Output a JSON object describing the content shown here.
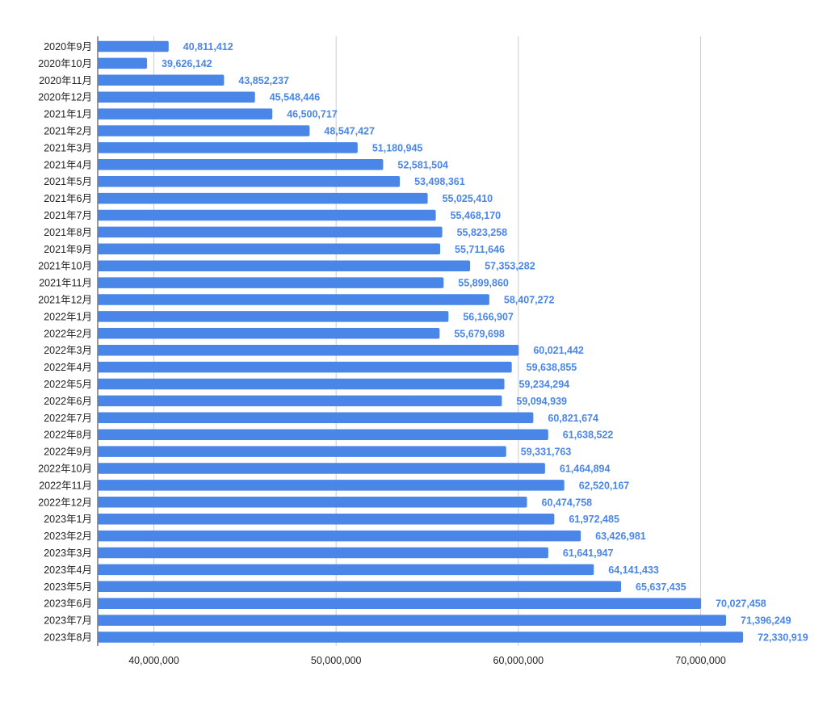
{
  "chart_data": {
    "type": "bar",
    "orientation": "horizontal",
    "categories": [
      "2020年9月",
      "2020年10月",
      "2020年11月",
      "2020年12月",
      "2021年1月",
      "2021年2月",
      "2021年3月",
      "2021年4月",
      "2021年5月",
      "2021年6月",
      "2021年7月",
      "2021年8月",
      "2021年9月",
      "2021年10月",
      "2021年11月",
      "2021年12月",
      "2022年1月",
      "2022年2月",
      "2022年3月",
      "2022年4月",
      "2022年5月",
      "2022年6月",
      "2022年7月",
      "2022年8月",
      "2022年9月",
      "2022年10月",
      "2022年11月",
      "2022年12月",
      "2023年1月",
      "2023年2月",
      "2023年3月",
      "2023年4月",
      "2023年5月",
      "2023年6月",
      "2023年7月",
      "2023年8月"
    ],
    "values": [
      40811412,
      39626142,
      43852237,
      45548446,
      46500717,
      48547427,
      51180945,
      52581504,
      53498361,
      55025410,
      55468170,
      55823258,
      55711646,
      57353282,
      55899860,
      58407272,
      56166907,
      55679698,
      60021442,
      59638855,
      59234294,
      59094939,
      60821674,
      61638522,
      59331763,
      61464894,
      62520167,
      60474758,
      61972485,
      63426981,
      61641947,
      64141433,
      65637435,
      70027458,
      71396249,
      72330919
    ],
    "data_labels": [
      "40,811,412",
      "39,626,142",
      "43,852,237",
      "45,548,446",
      "46,500,717",
      "48,547,427",
      "51,180,945",
      "52,581,504",
      "53,498,361",
      "55,025,410",
      "55,468,170",
      "55,823,258",
      "55,711,646",
      "57,353,282",
      "55,899,860",
      "58,407,272",
      "56,166,907",
      "55,679,698",
      "60,021,442",
      "59,638,855",
      "59,234,294",
      "59,094,939",
      "60,821,674",
      "61,638,522",
      "59,331,763",
      "61,464,894",
      "62,520,167",
      "60,474,758",
      "61,972,485",
      "63,426,981",
      "61,641,947",
      "64,141,433",
      "65,637,435",
      "70,027,458",
      "71,396,249",
      "72,330,919"
    ],
    "x_ticks": [
      {
        "value": 40000000,
        "label": "40,000,000"
      },
      {
        "value": 50000000,
        "label": "50,000,000"
      },
      {
        "value": 60000000,
        "label": "60,000,000"
      },
      {
        "value": 70000000,
        "label": "70,000,000"
      }
    ],
    "xlim": [
      37000000,
      75000000
    ],
    "title": "",
    "xlabel": "",
    "ylabel": "",
    "grid": "vertical",
    "legend": "none",
    "colors": {
      "bar": "#4a86e8",
      "data_label": "#4a86e8",
      "axis_text": "#222222",
      "gridline": "#cccccc"
    }
  }
}
